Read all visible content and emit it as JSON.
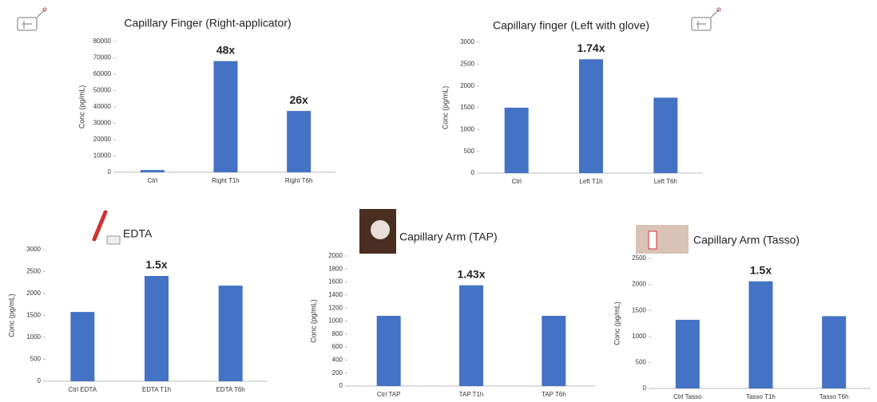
{
  "chart_data": [
    {
      "type": "bar",
      "title": "Capillary Finger (Right-applicator)",
      "y_label": "Conc (pg/mL)",
      "color": "#4472c4",
      "categories": [
        "Ctrl",
        "Right T1h",
        "Right T6h"
      ],
      "values": [
        1400,
        68000,
        37500
      ],
      "annotations": [
        null,
        "48x",
        "26x"
      ],
      "ylim": [
        0,
        80000
      ],
      "yticks": [
        0,
        10000,
        20000,
        30000,
        40000,
        50000,
        60000,
        70000,
        80000
      ]
    },
    {
      "type": "bar",
      "title": "Capillary finger (Left with glove)",
      "y_label": "Conc (pg/mL)",
      "color": "#4472c4",
      "categories": [
        "Ctrl",
        "Left T1h",
        "Left T6h"
      ],
      "values": [
        1500,
        2610,
        1730
      ],
      "annotations": [
        null,
        "1.74x",
        null
      ],
      "ylim": [
        0,
        3000
      ],
      "yticks": [
        0,
        500,
        1000,
        1500,
        2000,
        2500,
        3000
      ]
    },
    {
      "type": "bar",
      "title": "EDTA",
      "y_label": "Conc (pg/mL)",
      "color": "#4472c4",
      "categories": [
        "Ctrl EDTA",
        "EDTA T1h",
        "EDTA T6h"
      ],
      "values": [
        1580,
        2400,
        2180
      ],
      "annotations": [
        null,
        "1.5x",
        null
      ],
      "ylim": [
        0,
        3000
      ],
      "yticks": [
        0,
        500,
        1000,
        1500,
        2000,
        2500,
        3000
      ]
    },
    {
      "type": "bar",
      "title": "Capillary Arm (TAP)",
      "y_label": "Conc (pg/mL)",
      "color": "#4472c4",
      "categories": [
        "Ctrl TAP",
        "TAP T1h",
        "TAP T6h"
      ],
      "values": [
        1080,
        1550,
        1080
      ],
      "annotations": [
        null,
        "1.43x",
        null
      ],
      "ylim": [
        0,
        2000
      ],
      "yticks": [
        0,
        200,
        400,
        600,
        800,
        1000,
        1200,
        1400,
        1600,
        1800,
        2000
      ]
    },
    {
      "type": "bar",
      "title": "Capillary Arm (Tasso)",
      "y_label": "Conc (pg/mL)",
      "color": "#4472c4",
      "categories": [
        "Ctrl Tasso",
        "Tasso T1h",
        "Tasso T6h"
      ],
      "values": [
        1320,
        2060,
        1390
      ],
      "annotations": [
        null,
        "1.5x",
        null
      ],
      "ylim": [
        0,
        2500
      ],
      "yticks": [
        0,
        500,
        1000,
        1500,
        2000,
        2500
      ]
    }
  ]
}
